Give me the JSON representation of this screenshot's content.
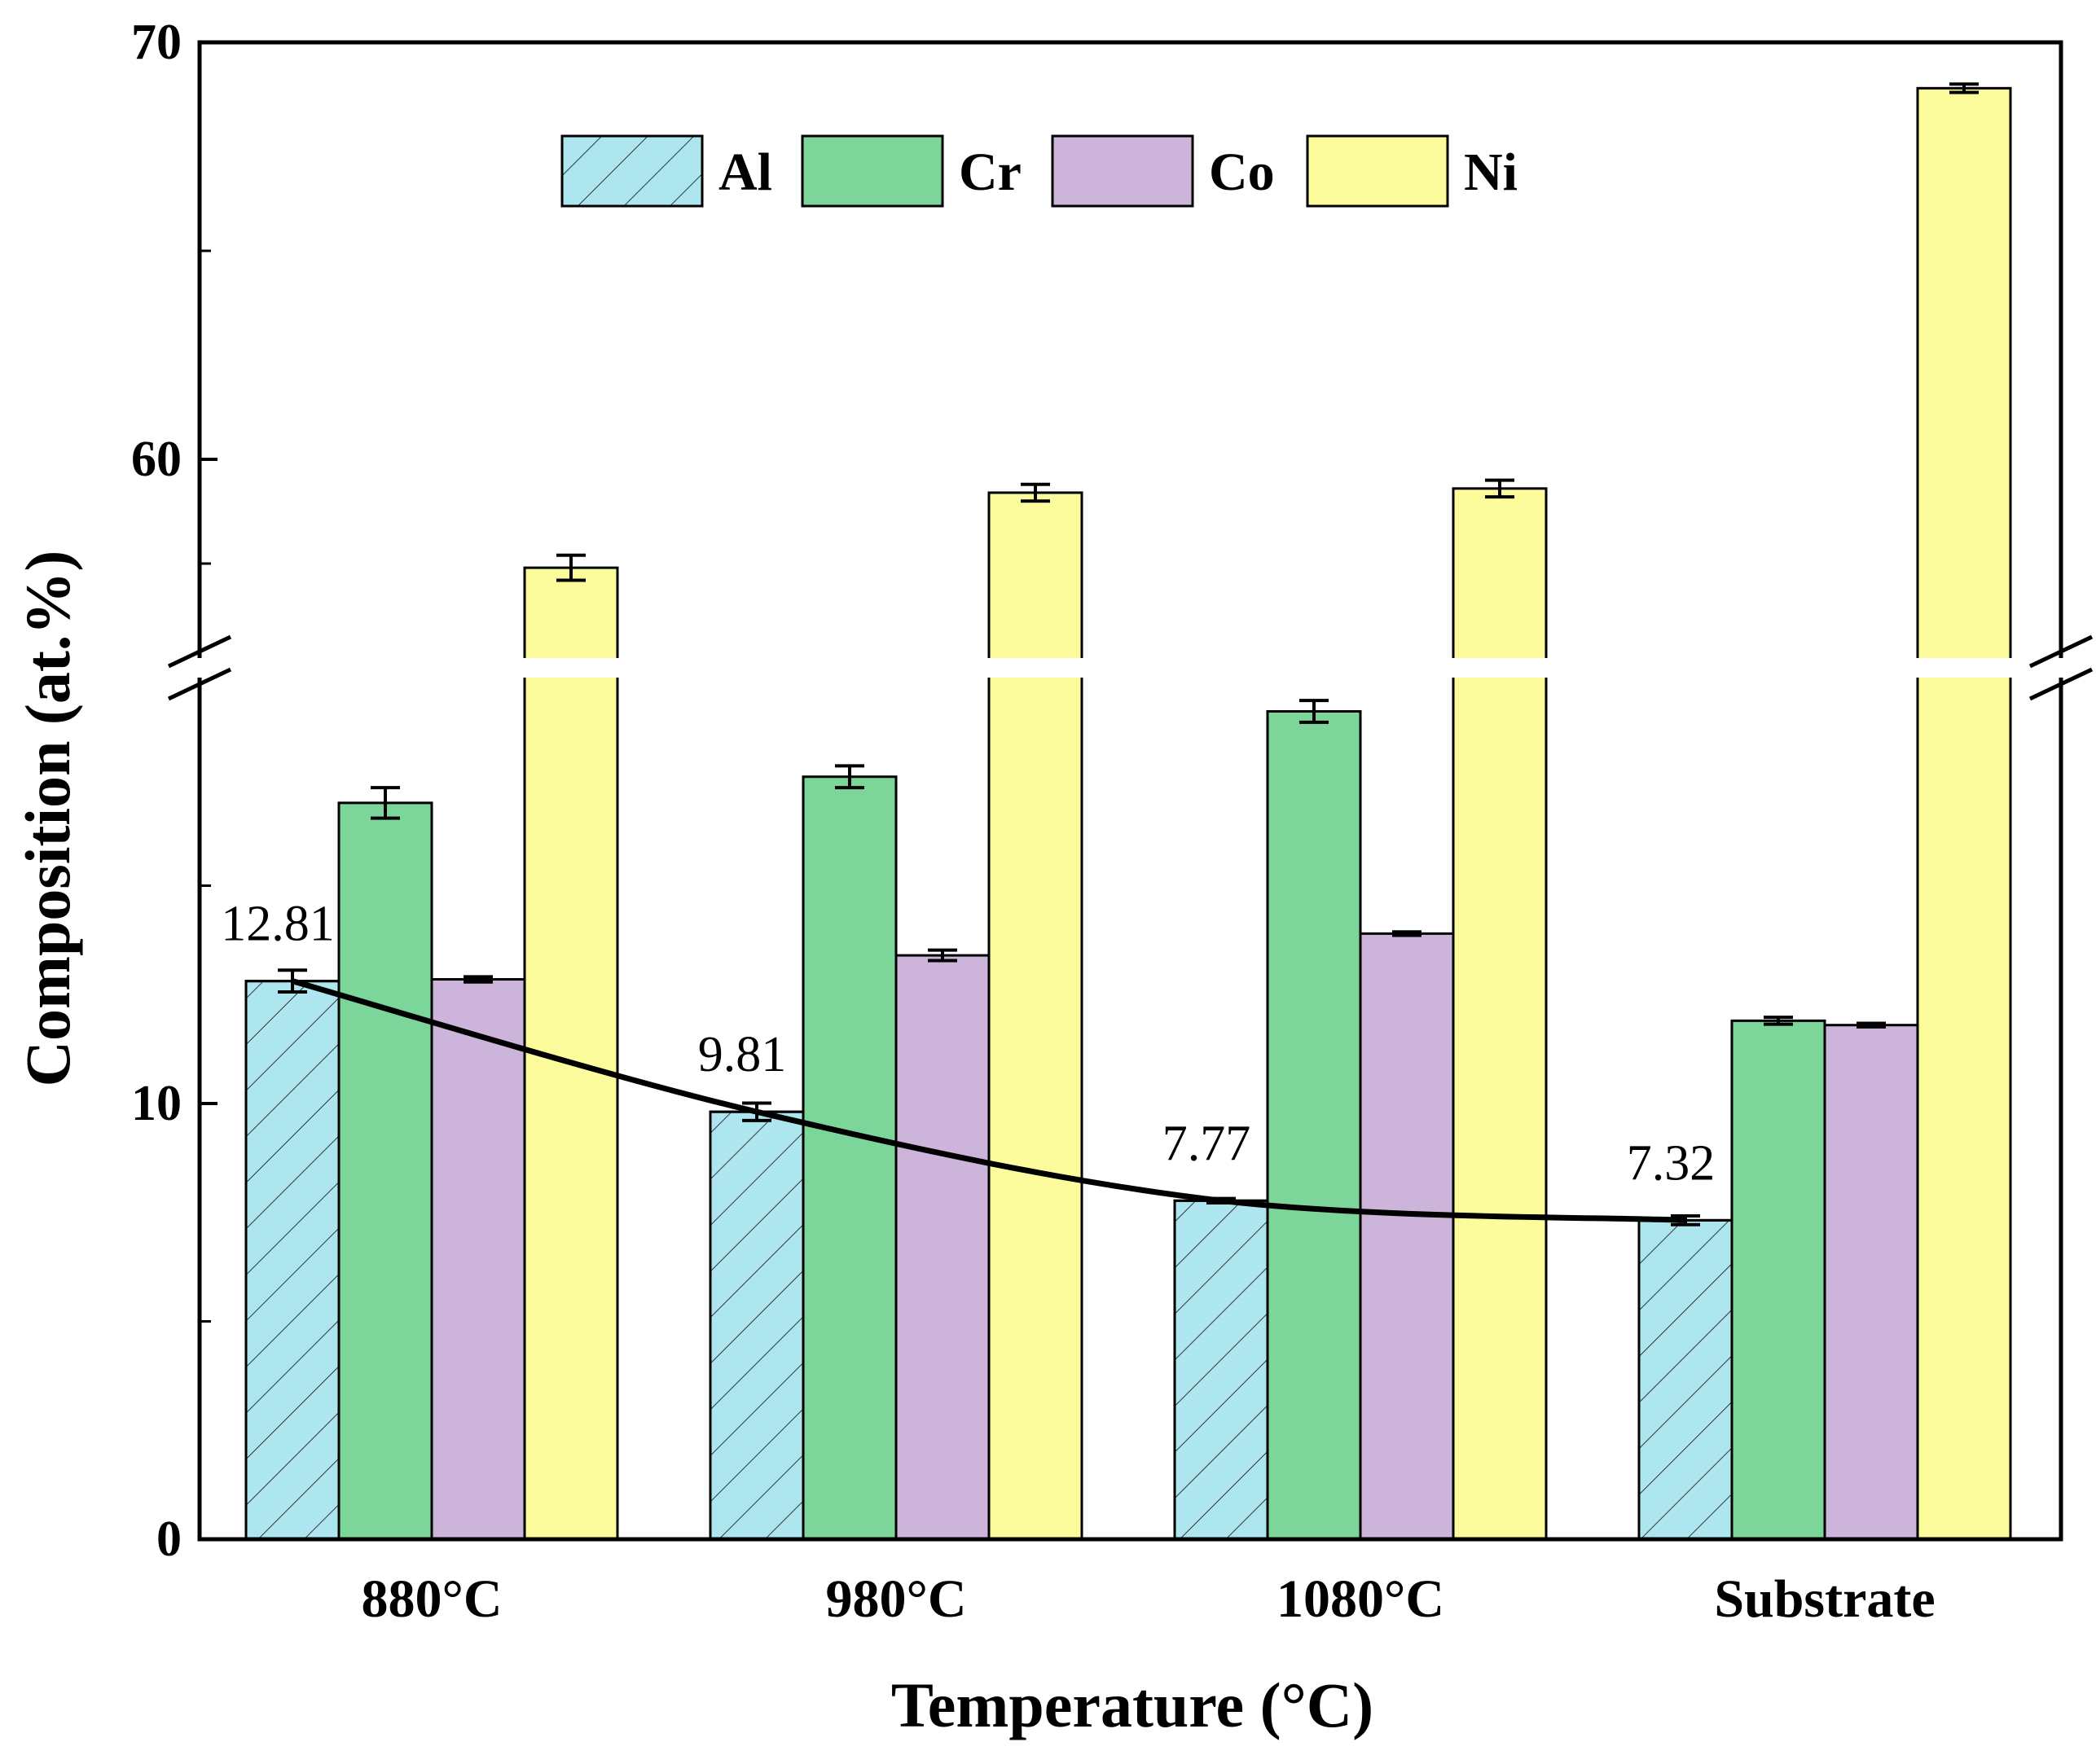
{
  "chart_data": {
    "type": "bar",
    "xlabel": "Temperature (°C)",
    "ylabel": "Composition (at.%)",
    "categories": [
      "880°C",
      "980°C",
      "1080°C",
      "Substrate"
    ],
    "series": [
      {
        "name": "Al",
        "values": [
          12.81,
          9.81,
          7.77,
          7.32
        ],
        "errors": [
          0.25,
          0.2,
          0.05,
          0.1
        ],
        "color": "#ade6ef",
        "hatch": true
      },
      {
        "name": "Cr",
        "values": [
          16.9,
          17.5,
          19.0,
          11.9
        ],
        "errors": [
          0.35,
          0.25,
          0.25,
          0.08
        ],
        "color": "#7dd699",
        "hatch": false
      },
      {
        "name": "Co",
        "values": [
          12.85,
          13.4,
          13.9,
          11.8
        ],
        "errors": [
          0.06,
          0.12,
          0.04,
          0.04
        ],
        "color": "#cdb4da",
        "hatch": false
      },
      {
        "name": "Ni",
        "values": [
          57.4,
          59.2,
          59.3,
          68.9
        ],
        "errors": [
          0.3,
          0.2,
          0.2,
          0.1
        ],
        "color": "#fdfc9d",
        "hatch": false
      }
    ],
    "trend_line": {
      "series": "Al",
      "labels": [
        "12.81",
        "9.81",
        "7.77",
        "7.32"
      ]
    },
    "y_axis": {
      "broken": true,
      "lower_segment_range": [
        0,
        20
      ],
      "upper_segment_range": [
        55,
        70
      ],
      "tick_labels": [
        "0",
        "10",
        "60",
        "70"
      ]
    },
    "legend": {
      "position": "top-center",
      "entries": [
        "Al",
        "Cr",
        "Co",
        "Ni"
      ]
    },
    "grid": false
  }
}
